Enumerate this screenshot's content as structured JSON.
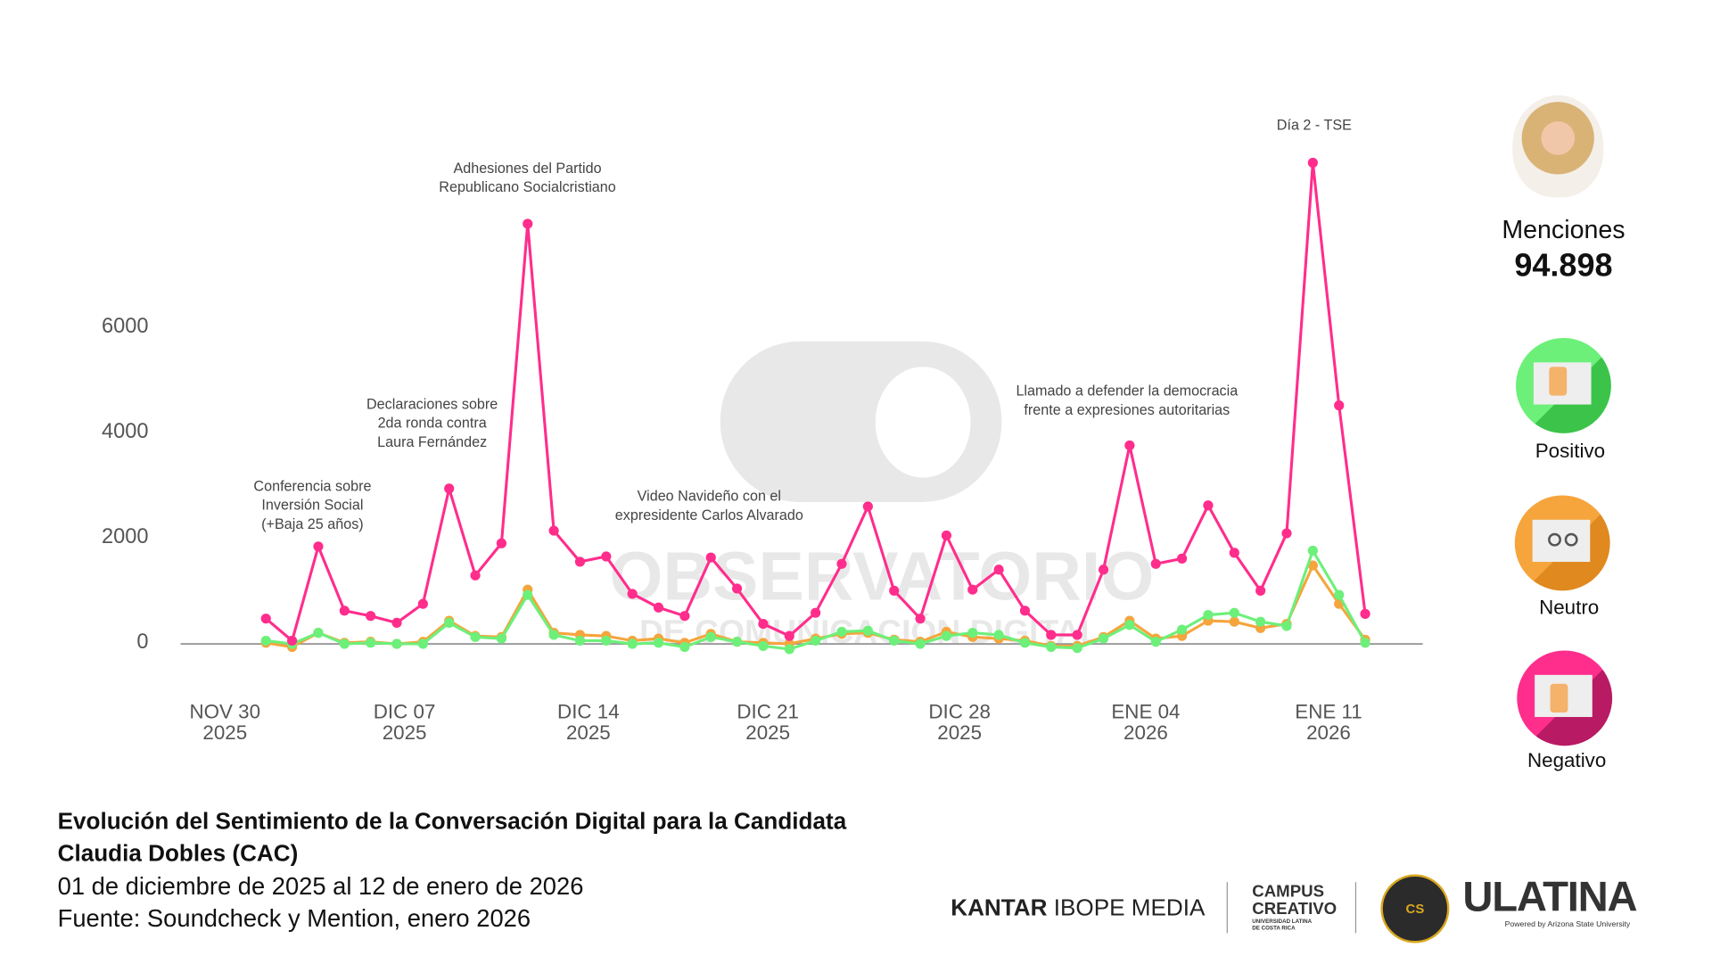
{
  "chart_data": {
    "type": "line",
    "title": "Evolución del Sentimiento de la Conversación Digital para la Candidata Claudia Dobles (CAC)",
    "subtitle": "01 de diciembre de 2025 al 12 de enero de 2026",
    "source": "Fuente: Soundcheck y Mention, enero 2026",
    "x_start": "2025-12-01",
    "x_end": "2026-01-12",
    "xticks": [
      {
        "l1": "NOV 30",
        "l2": "2025"
      },
      {
        "l1": "DIC 07",
        "l2": "2025"
      },
      {
        "l1": "DIC 14",
        "l2": "2025"
      },
      {
        "l1": "DIC 21",
        "l2": "2025"
      },
      {
        "l1": "DIC 28",
        "l2": "2025"
      },
      {
        "l1": "ENE 04",
        "l2": "2026"
      },
      {
        "l1": "ENE 11",
        "l2": "2026"
      }
    ],
    "yticks": [
      "0",
      "2000",
      "4000",
      "6000"
    ],
    "ylim": [
      -200,
      9200
    ],
    "grid": false,
    "series": [
      {
        "name": "Negativo",
        "color": "#ff2d8c",
        "values": [
          480,
          60,
          1850,
          630,
          530,
          400,
          760,
          2950,
          1300,
          1910,
          7980,
          2150,
          1560,
          1660,
          950,
          690,
          530,
          1640,
          1050,
          380,
          150,
          590,
          1520,
          2610,
          1010,
          480,
          2060,
          1030,
          1410,
          630,
          170,
          170,
          1410,
          3770,
          1520,
          1620,
          2630,
          1730,
          1010,
          2100,
          9140,
          4530,
          570
        ]
      },
      {
        "name": "Positivo",
        "color": "#6cf07a",
        "values": [
          60,
          0,
          210,
          0,
          20,
          0,
          0,
          400,
          130,
          100,
          930,
          170,
          60,
          60,
          0,
          20,
          -60,
          130,
          40,
          -40,
          -100,
          60,
          230,
          250,
          60,
          0,
          150,
          210,
          170,
          20,
          -60,
          -80,
          100,
          360,
          40,
          270,
          550,
          590,
          420,
          340,
          1770,
          930,
          20
        ]
      },
      {
        "name": "Neutro",
        "color": "#f5a53c",
        "values": [
          20,
          -60,
          210,
          20,
          40,
          0,
          40,
          440,
          150,
          130,
          1030,
          210,
          170,
          150,
          60,
          100,
          20,
          190,
          40,
          20,
          0,
          100,
          190,
          210,
          80,
          40,
          230,
          130,
          100,
          60,
          -40,
          -40,
          130,
          440,
          100,
          150,
          440,
          420,
          300,
          380,
          1490,
          760,
          80
        ]
      }
    ],
    "annotations": [
      {
        "lines": [
          "Conferencia sobre",
          "Inversión Social",
          "(+Baja 25 años)"
        ]
      },
      {
        "lines": [
          "Declaraciones sobre",
          "2da ronda contra",
          "Laura Fernández"
        ]
      },
      {
        "lines": [
          "Adhesiones del Partido",
          "Republicano Socialcristiano"
        ]
      },
      {
        "lines": [
          "Video Navideño con el",
          "expresidente Carlos Alvarado"
        ]
      },
      {
        "lines": [
          "Llamado a defender la democracia",
          "frente a expresiones autoritarias"
        ]
      },
      {
        "lines": [
          "Día 2 - TSE"
        ]
      }
    ]
  },
  "summary": {
    "label": "Menciones",
    "value": "94.898",
    "positive": "Positivo",
    "neutral": "Neutro",
    "negative": "Negativo"
  },
  "watermark": {
    "line1": "OBSERVATORIO",
    "line2": "DE COMUNICACIÓN DIGITAL"
  },
  "logos": {
    "kantar": "KANTAR",
    "ibope": "IBOPE MEDIA",
    "campus1": "CAMPUS",
    "campus2": "CREATIVO",
    "campus3": "UNIVERSIDAD LATINA DE COSTA RICA",
    "badge": "CS",
    "ulatina": "ULATINA",
    "asu": "Powered by Arizona State University"
  }
}
